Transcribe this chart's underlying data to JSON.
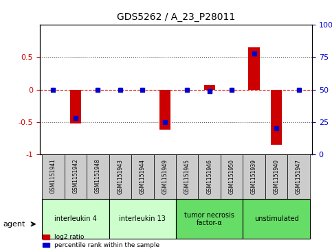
{
  "title": "GDS5262 / A_23_P28011",
  "samples": [
    "GSM1151941",
    "GSM1151942",
    "GSM1151948",
    "GSM1151943",
    "GSM1151944",
    "GSM1151949",
    "GSM1151945",
    "GSM1151946",
    "GSM1151950",
    "GSM1151939",
    "GSM1151940",
    "GSM1151947"
  ],
  "log2_ratio": [
    0.0,
    -0.52,
    0.0,
    0.0,
    0.0,
    -0.62,
    0.0,
    0.07,
    0.0,
    0.65,
    -0.85,
    0.0
  ],
  "percentile_rank": [
    50,
    28,
    50,
    50,
    50,
    25,
    50,
    49,
    50,
    78,
    20,
    50
  ],
  "groups": [
    {
      "label": "interleukin 4",
      "start": 0,
      "end": 2,
      "color": "#ccffcc"
    },
    {
      "label": "interleukin 13",
      "start": 3,
      "end": 5,
      "color": "#ccffcc"
    },
    {
      "label": "tumor necrosis\nfactor-α",
      "start": 6,
      "end": 8,
      "color": "#66dd66"
    },
    {
      "label": "unstimulated",
      "start": 9,
      "end": 11,
      "color": "#66dd66"
    }
  ],
  "ylim": [
    -1.0,
    1.0
  ],
  "yticks_left": [
    -1,
    -0.5,
    0,
    0.5
  ],
  "yticks_right": [
    0,
    25,
    50,
    75,
    100
  ],
  "bar_color": "#cc0000",
  "dot_color": "#0000cc",
  "bg_color": "#ffffff",
  "sample_box_color": "#cccccc",
  "hline_color_red": "#dd0000",
  "hline_color_dotted": "#555555"
}
